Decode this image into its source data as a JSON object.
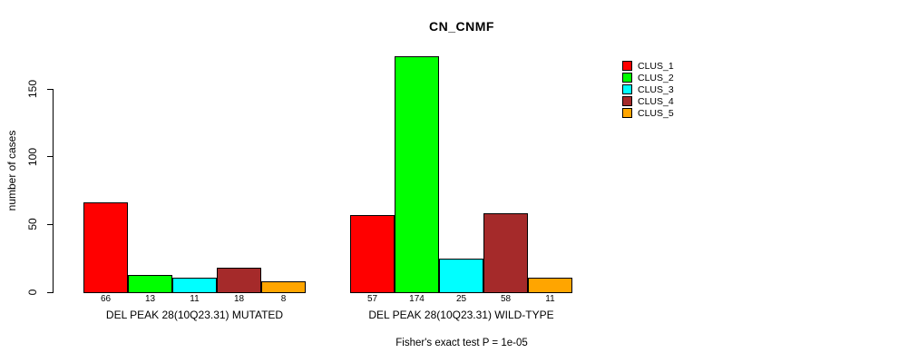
{
  "chart_data": {
    "type": "bar",
    "title": "CN_CNMF",
    "ylabel": "number of cases",
    "xlabel": "",
    "ylim": [
      0,
      175
    ],
    "yticks": [
      0,
      50,
      100,
      150
    ],
    "grid": false,
    "legend_position": "top-right",
    "categories": [
      "DEL PEAK 28(10Q23.31) MUTATED",
      "DEL PEAK 28(10Q23.31) WILD-TYPE"
    ],
    "series": [
      {
        "name": "CLUS_1",
        "color": "#FF0000",
        "values": [
          66,
          57
        ]
      },
      {
        "name": "CLUS_2",
        "color": "#00FF00",
        "values": [
          13,
          174
        ]
      },
      {
        "name": "CLUS_3",
        "color": "#00FFFF",
        "values": [
          11,
          25
        ]
      },
      {
        "name": "CLUS_4",
        "color": "#A52A2A",
        "values": [
          18,
          58
        ]
      },
      {
        "name": "CLUS_5",
        "color": "#FFA500",
        "values": [
          8,
          11
        ]
      }
    ],
    "bar_value_labels_shown": true,
    "annotation": "Fisher's exact test P = 1e-05"
  }
}
